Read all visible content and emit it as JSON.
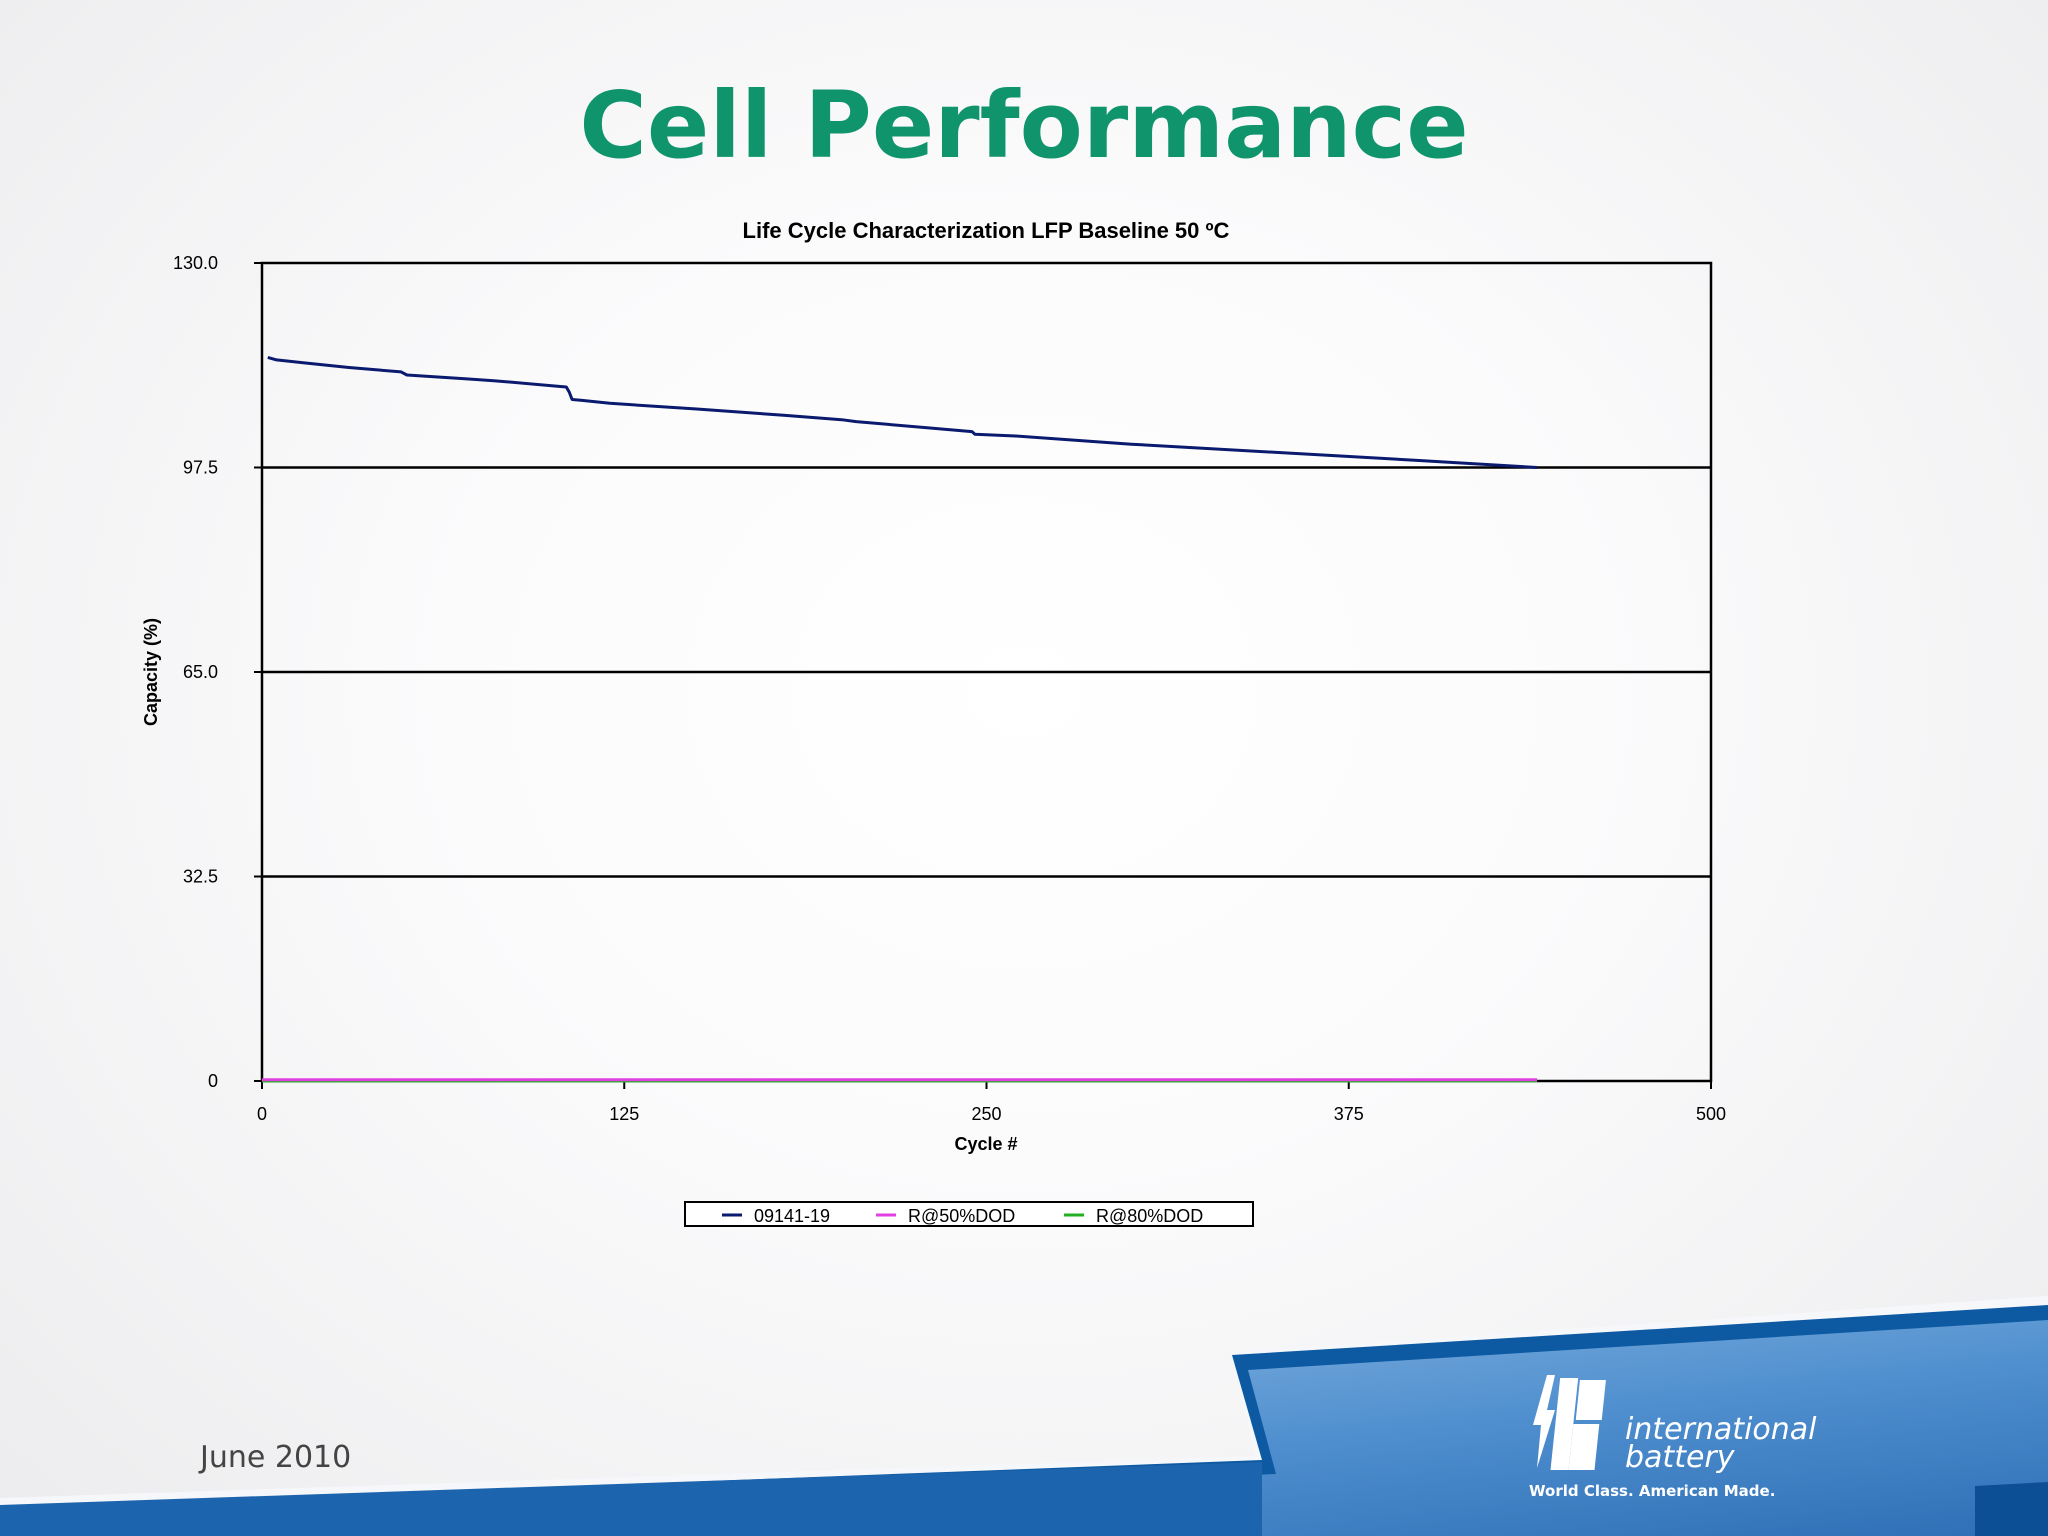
{
  "slide": {
    "title": "Cell Performance",
    "date": "June 2010"
  },
  "logo": {
    "line1": "international",
    "line2": "battery",
    "tagline": "World Class.  American Made."
  },
  "colors": {
    "title_green": "#0f946c",
    "series_navy": "#0a1a6e",
    "series_magenta": "#e040e0",
    "series_green": "#22b022",
    "banner_blue": "#0d5aa3"
  },
  "chart_data": {
    "type": "line",
    "title": "Life Cycle Characterization LFP Baseline 50 ºC",
    "xlabel": "Cycle #",
    "ylabel": "Capacity (%)",
    "xlim": [
      0,
      500
    ],
    "ylim": [
      0,
      130
    ],
    "xticks": [
      "0",
      "125",
      "250",
      "375",
      "500"
    ],
    "yticks": [
      "0",
      "32.5",
      "65.0",
      "97.5",
      "130.0"
    ],
    "xtick_values": [
      0,
      125,
      250,
      375,
      500
    ],
    "ytick_values": [
      0,
      32.5,
      65,
      97.5,
      130
    ],
    "grid": "horizontal",
    "legend_position": "bottom",
    "series": [
      {
        "name": "09141-19",
        "color": "#0a1a6e",
        "x": [
          2,
          5,
          15,
          30,
          48,
          50,
          70,
          80,
          100,
          105,
          106,
          107,
          110,
          120,
          150,
          180,
          200,
          205,
          230,
          245,
          246,
          260,
          300,
          350,
          400,
          440
        ],
        "y": [
          115,
          114.6,
          114.1,
          113.4,
          112.7,
          112.2,
          111.6,
          111.3,
          110.5,
          110.3,
          109.5,
          108.3,
          108.2,
          107.7,
          106.8,
          105.8,
          105.1,
          104.8,
          103.8,
          103.2,
          102.8,
          102.5,
          101.2,
          99.9,
          98.6,
          97.5
        ]
      },
      {
        "name": "R@50%DOD",
        "color": "#e040e0",
        "x": [
          0,
          440
        ],
        "y": [
          0.2,
          0.2
        ]
      },
      {
        "name": "R@80%DOD",
        "color": "#22b022",
        "x": [
          0,
          440
        ],
        "y": [
          0.0,
          0.0
        ]
      }
    ]
  }
}
